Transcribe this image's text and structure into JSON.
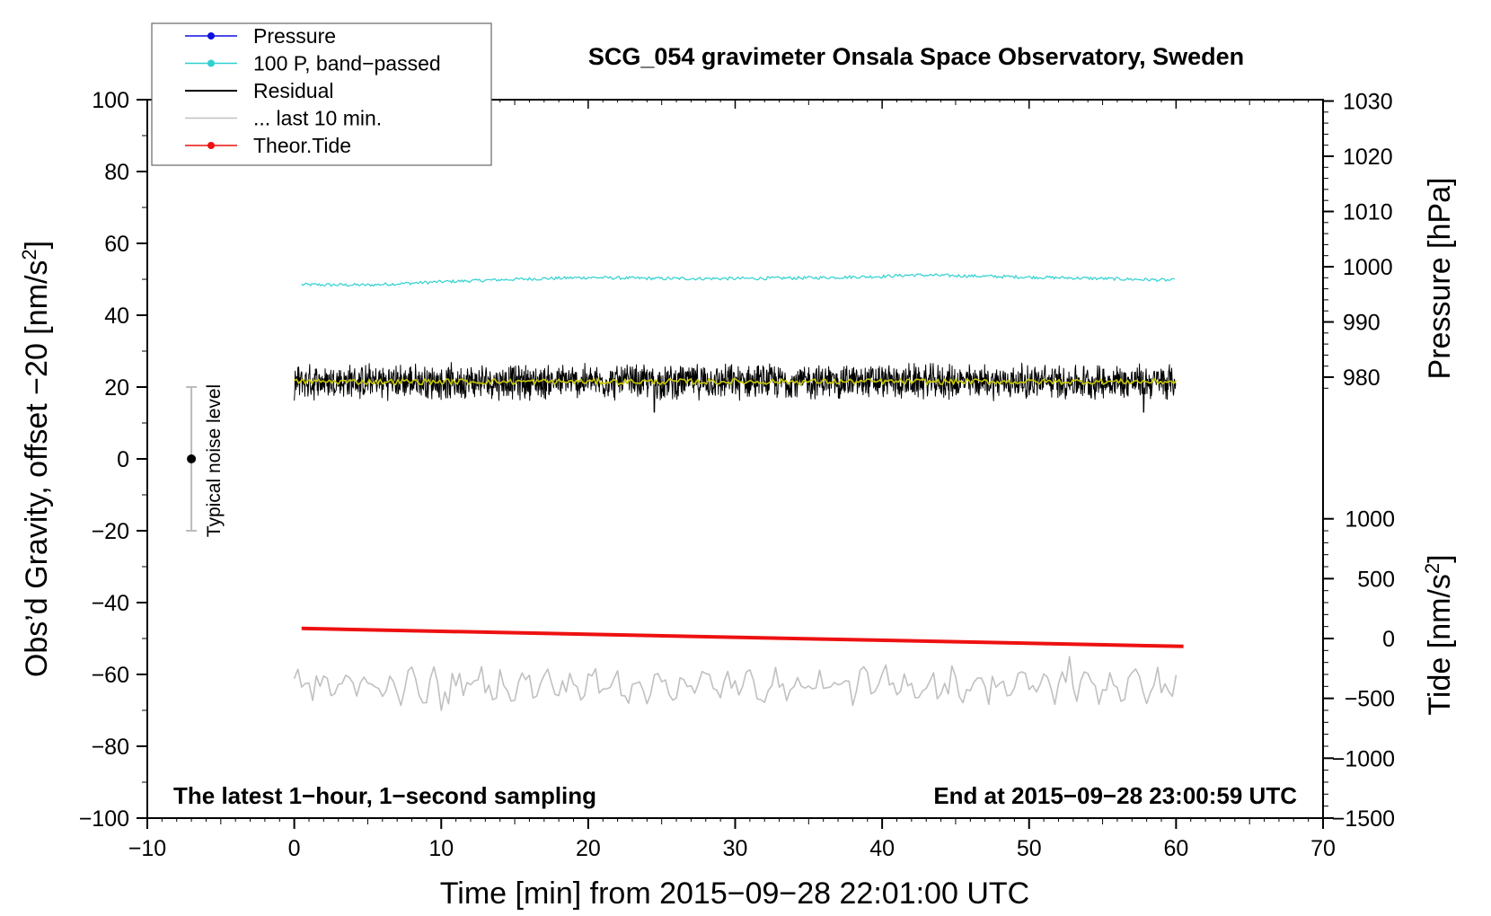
{
  "chart_data": {
    "type": "line",
    "title": "SCG_054 gravimeter Onsala Space Observatory, Sweden",
    "xlabel": "Time [min] from 2015−09−28 22:01:00 UTC",
    "ylabel_left": "Obs'd Gravity, offset −20 [nm/s²]",
    "ylabel_right_pressure": "Pressure [hPa]",
    "ylabel_right_tide": "Tide [nm/s²]",
    "xlim": [
      -10,
      70
    ],
    "ylim": [
      -100,
      100
    ],
    "x_ticks": [
      "−10",
      "0",
      "10",
      "20",
      "30",
      "40",
      "50",
      "60",
      "70"
    ],
    "y_ticks": [
      "−100",
      "−80",
      "−60",
      "−40",
      "−20",
      "0",
      "20",
      "40",
      "60",
      "80",
      "100"
    ],
    "pressure_ticks": [
      "980",
      "990",
      "1000",
      "1010",
      "1020",
      "1030"
    ],
    "tide_ticks": [
      "−1500",
      "−1000",
      "−500",
      "0",
      "500",
      "1000"
    ],
    "legend": {
      "position": "top-left",
      "entries": [
        {
          "label": "Pressure",
          "color": "#1010e0",
          "marker": true
        },
        {
          "label": "100 P, band−passed",
          "color": "#30d0d0",
          "marker": true
        },
        {
          "label": "Residual",
          "color": "#000000",
          "marker": false
        },
        {
          "label": "... last 10 min.",
          "color": "#c0c0c0",
          "marker": false
        },
        {
          "label": "Theor.Tide",
          "color": "#ee1111",
          "marker": true
        }
      ]
    },
    "annotation_left": "The latest 1−hour, 1−second sampling",
    "annotation_right": "End at 2015−09−28 23:00:59 UTC",
    "noise_label": "Typical noise level",
    "noise_bar": {
      "x": -7,
      "center": 0,
      "low": -20,
      "high": 20
    },
    "series": [
      {
        "name": "100 P, band−passed",
        "color": "#30d0d0",
        "x": [
          0.5,
          5,
          10,
          15,
          20,
          25,
          30,
          35,
          40,
          42,
          45,
          50,
          55,
          60
        ],
        "y": [
          48.5,
          48.4,
          49.3,
          50.0,
          50.5,
          50.2,
          50.2,
          50.4,
          50.8,
          51.2,
          51.0,
          50.6,
          50.2,
          49.7
        ]
      },
      {
        "name": "Residual",
        "color": "#000000",
        "x_range": [
          0,
          60
        ],
        "mean": 21.5,
        "amplitude": 5,
        "extremes": [
          {
            "x": 24.5,
            "y": 31
          },
          {
            "x": 24.5,
            "y": 13
          },
          {
            "x": 57.8,
            "y": 13
          }
        ]
      },
      {
        "name": "Residual smoothed",
        "color": "#c8c800",
        "x_range": [
          0,
          60
        ],
        "mean": 21.5
      },
      {
        "name": "Theor.Tide",
        "color": "#ee1111",
        "x": [
          0.5,
          60.5
        ],
        "y": [
          -47.2,
          -52.2
        ]
      },
      {
        "name": "... last 10 min.",
        "color": "#c0c0c0",
        "x_range": [
          0,
          60
        ],
        "mean": -63,
        "amplitude": 4.5,
        "extremes": [
          {
            "x": 10,
            "y": -70
          },
          {
            "x": 52.8,
            "y": -55
          }
        ]
      }
    ]
  }
}
